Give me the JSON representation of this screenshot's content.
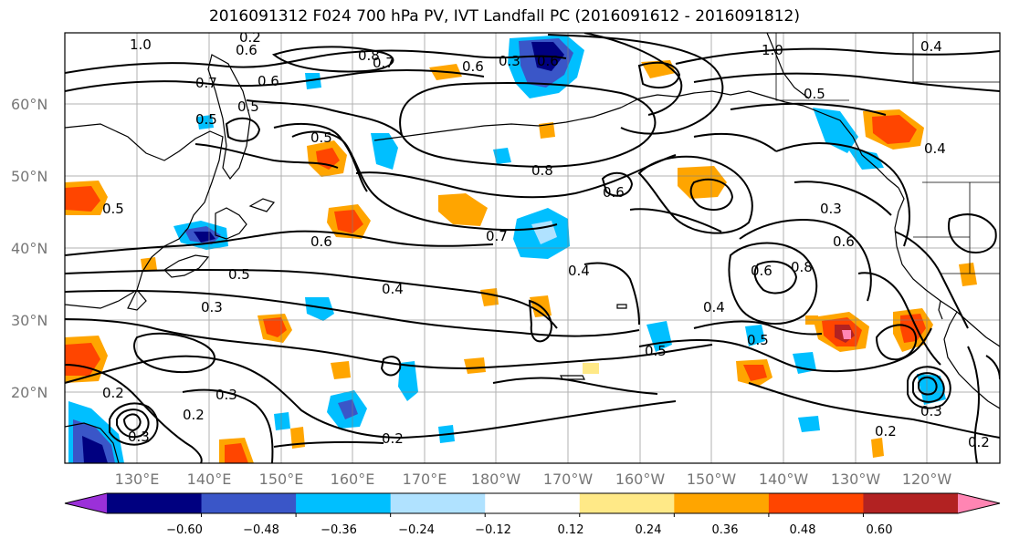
{
  "title": "2016091312 F024 700 hPa PV, IVT Landfall PC (2016091612 - 2016091812)",
  "map": {
    "lat_labels": [
      "60°N",
      "50°N",
      "40°N",
      "30°N",
      "20°N"
    ],
    "lon_labels": [
      "130°E",
      "140°E",
      "150°E",
      "160°E",
      "170°E",
      "180°W",
      "170°W",
      "160°W",
      "150°W",
      "140°W",
      "130°W",
      "120°W"
    ],
    "contour_labels": [
      "1.0",
      "0.6",
      "0.2",
      "0.7",
      "0.8",
      "0.7",
      "0.6",
      "0.5",
      "0.3",
      "0.6",
      "0.5",
      "0.5",
      "0.6",
      "1.0",
      "0.5",
      "0.4",
      "0.4",
      "0.8",
      "0.6",
      "0.6",
      "0.3",
      "0.7",
      "0.6",
      "0.4",
      "0.5",
      "0.3",
      "0.4",
      "0.4",
      "0.5",
      "0.5",
      "0.6",
      "0.8",
      "0.5",
      "0.3",
      "0.2",
      "0.3",
      "0.2",
      "0.2",
      "0.2",
      "0.2",
      "0.3"
    ]
  },
  "colorbar": {
    "ticks": [
      "−0.60",
      "−0.48",
      "−0.36",
      "−0.24",
      "−0.12",
      "0.12",
      "0.24",
      "0.36",
      "0.48",
      "0.60"
    ],
    "colors": [
      "#9b30d9",
      "#000080",
      "#3a56c8",
      "#00bfff",
      "#b0e2ff",
      "#ffffff",
      "#ffe987",
      "#ffa500",
      "#ff4500",
      "#b22222",
      "#ff85b3"
    ]
  }
}
